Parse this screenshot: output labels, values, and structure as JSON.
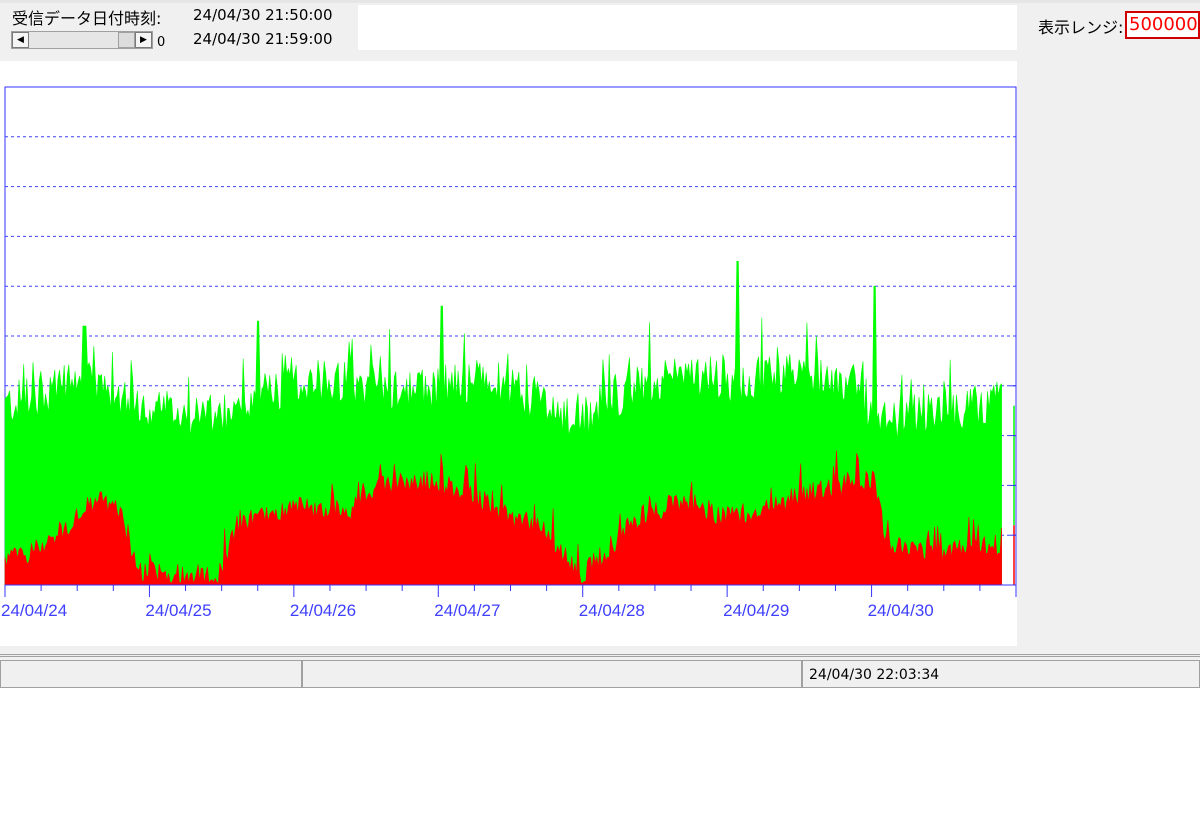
{
  "header": {
    "received_label": "受信データ日付時刻:",
    "time_start": "24/04/30 21:50:00",
    "time_end": "24/04/30 21:59:00",
    "scroll_value": "0",
    "range_label": "表示レンジ:",
    "range_value": "500000"
  },
  "status": {
    "timestamp": "24/04/30 22:03:34"
  },
  "colors": {
    "total_fill": "#00ff00",
    "sub_fill": "#ff0000",
    "axis": "#3333ff",
    "label": "#3f3fff"
  },
  "chart_data": {
    "type": "area",
    "ylim": [
      0,
      500000
    ],
    "x_tick_labels": [
      "24/04/24",
      "24/04/25",
      "24/04/26",
      "24/04/27",
      "24/04/28",
      "24/04/29",
      "24/04/30"
    ],
    "grid": "dashed horizontal",
    "series": [
      {
        "color": "#00ff00",
        "keypoints": [
          [
            24.0,
            180000
          ],
          [
            24.2,
            190000
          ],
          [
            24.5,
            205000
          ],
          [
            24.8,
            190000
          ],
          [
            25.2,
            170000
          ],
          [
            25.5,
            168000
          ],
          [
            25.7,
            180000
          ],
          [
            26.0,
            205000
          ],
          [
            26.3,
            205000
          ],
          [
            26.6,
            200000
          ],
          [
            26.9,
            195000
          ],
          [
            27.2,
            205000
          ],
          [
            27.5,
            200000
          ],
          [
            27.7,
            185000
          ],
          [
            27.9,
            165000
          ],
          [
            28.0,
            165000
          ],
          [
            28.2,
            190000
          ],
          [
            28.5,
            205000
          ],
          [
            28.8,
            210000
          ],
          [
            29.0,
            205000
          ],
          [
            29.3,
            210000
          ],
          [
            29.6,
            210000
          ],
          [
            29.9,
            200000
          ],
          [
            30.05,
            160000
          ],
          [
            30.3,
            170000
          ],
          [
            30.6,
            175000
          ],
          [
            30.85,
            185000
          ]
        ],
        "peaks": [
          [
            24.55,
            260000
          ],
          [
            25.75,
            265000
          ],
          [
            27.02,
            280000
          ],
          [
            29.07,
            325000
          ],
          [
            30.02,
            300000
          ]
        ]
      },
      {
        "color": "#ff0000",
        "keypoints": [
          [
            24.0,
            25000
          ],
          [
            24.2,
            35000
          ],
          [
            24.45,
            60000
          ],
          [
            24.65,
            90000
          ],
          [
            24.8,
            70000
          ],
          [
            24.9,
            15000
          ],
          [
            25.5,
            8000
          ],
          [
            25.6,
            60000
          ],
          [
            26.0,
            80000
          ],
          [
            26.2,
            75000
          ],
          [
            26.4,
            75000
          ],
          [
            26.6,
            100000
          ],
          [
            26.9,
            105000
          ],
          [
            27.2,
            95000
          ],
          [
            27.45,
            70000
          ],
          [
            27.7,
            60000
          ],
          [
            27.9,
            25000
          ],
          [
            28.0,
            10000
          ],
          [
            28.2,
            40000
          ],
          [
            28.4,
            70000
          ],
          [
            28.7,
            85000
          ],
          [
            28.95,
            70000
          ],
          [
            29.2,
            70000
          ],
          [
            29.5,
            90000
          ],
          [
            29.8,
            100000
          ],
          [
            30.02,
            105000
          ],
          [
            30.1,
            40000
          ],
          [
            30.4,
            30000
          ],
          [
            30.6,
            35000
          ],
          [
            30.85,
            40000
          ]
        ]
      }
    ]
  }
}
